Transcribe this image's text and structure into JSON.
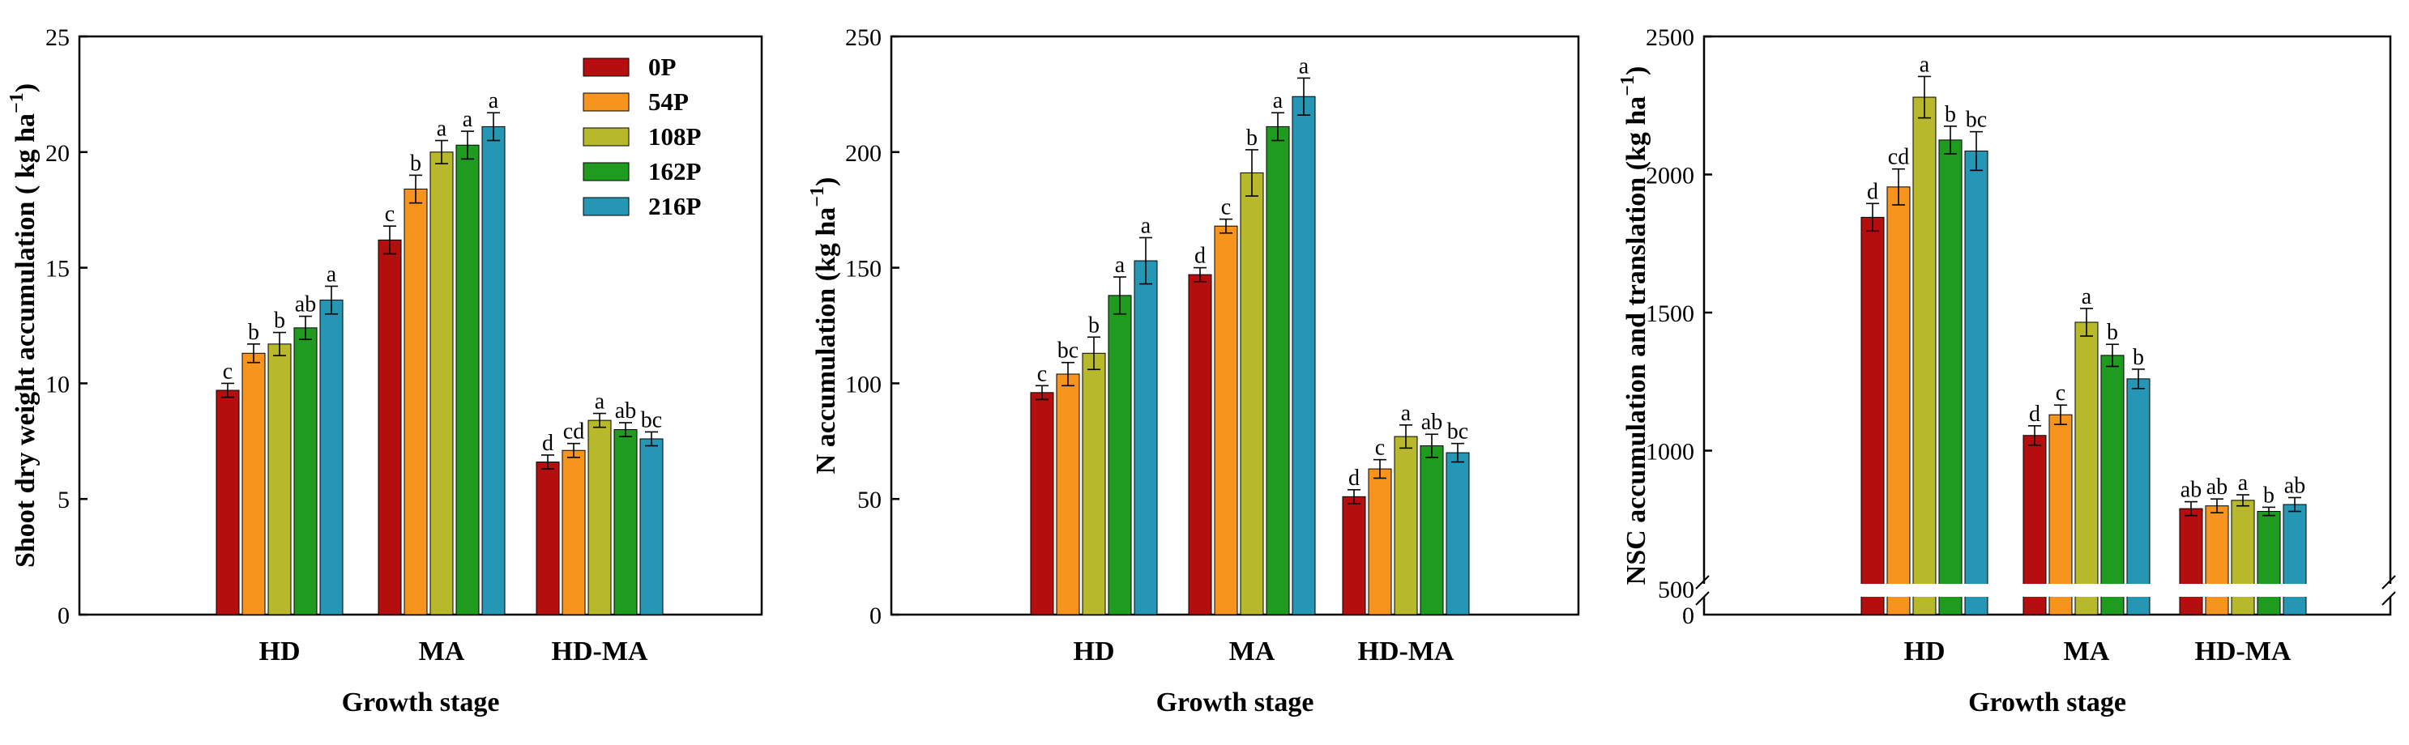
{
  "chart_data": [
    {
      "type": "bar",
      "title": "",
      "xlabel": "Growth stage",
      "ylabel": "Shoot dry weight accumulation ( kg ha",
      "ylabel_superscript": "−1",
      "ylabel_suffix": ")",
      "ylim": [
        0,
        25
      ],
      "yticks": [
        0,
        5,
        10,
        15,
        20,
        25
      ],
      "ytick_labels": [
        "0",
        "5",
        "10",
        "15",
        "20",
        "25"
      ],
      "categories": [
        "HD",
        "MA",
        "HD-MA"
      ],
      "legend": {
        "position": "top-right",
        "entries": [
          "0P",
          "54P",
          "108P",
          "162P",
          "216P"
        ]
      },
      "series": [
        {
          "name": "0P",
          "color": "#b50e0e",
          "values": [
            9.7,
            16.2,
            6.6
          ],
          "errors": [
            0.3,
            0.6,
            0.3
          ],
          "letters": [
            "c",
            "c",
            "d"
          ]
        },
        {
          "name": "54P",
          "color": "#f7941d",
          "values": [
            11.3,
            18.4,
            7.1
          ],
          "errors": [
            0.4,
            0.6,
            0.3
          ],
          "letters": [
            "b",
            "b",
            "cd"
          ]
        },
        {
          "name": "108P",
          "color": "#b7b92a",
          "values": [
            11.7,
            20.0,
            8.4
          ],
          "errors": [
            0.5,
            0.5,
            0.3
          ],
          "letters": [
            "b",
            "a",
            "a"
          ]
        },
        {
          "name": "162P",
          "color": "#1f9c1f",
          "values": [
            12.4,
            20.3,
            8.0
          ],
          "errors": [
            0.5,
            0.6,
            0.3
          ],
          "letters": [
            "ab",
            "a",
            "ab"
          ]
        },
        {
          "name": "216P",
          "color": "#2597b5",
          "values": [
            13.6,
            21.1,
            7.6
          ],
          "errors": [
            0.6,
            0.6,
            0.3
          ],
          "letters": [
            "a",
            "a",
            "bc"
          ]
        }
      ]
    },
    {
      "type": "bar",
      "title": "",
      "xlabel": "Growth stage",
      "ylabel": "N accumulation (kg ha",
      "ylabel_superscript": "−1",
      "ylabel_suffix": ")",
      "ylim": [
        0,
        250
      ],
      "yticks": [
        0,
        50,
        100,
        150,
        200,
        250
      ],
      "ytick_labels": [
        "0",
        "50",
        "100",
        "150",
        "200",
        "250"
      ],
      "categories": [
        "HD",
        "MA",
        "HD-MA"
      ],
      "series": [
        {
          "name": "0P",
          "color": "#b50e0e",
          "values": [
            96,
            147,
            51
          ],
          "errors": [
            3,
            3,
            3
          ],
          "letters": [
            "c",
            "d",
            "d"
          ]
        },
        {
          "name": "54P",
          "color": "#f7941d",
          "values": [
            104,
            168,
            63
          ],
          "errors": [
            5,
            3,
            4
          ],
          "letters": [
            "bc",
            "c",
            "c"
          ]
        },
        {
          "name": "108P",
          "color": "#b7b92a",
          "values": [
            113,
            191,
            77
          ],
          "errors": [
            7,
            10,
            5
          ],
          "letters": [
            "b",
            "b",
            "a"
          ]
        },
        {
          "name": "162P",
          "color": "#1f9c1f",
          "values": [
            138,
            211,
            73
          ],
          "errors": [
            8,
            6,
            5
          ],
          "letters": [
            "a",
            "a",
            "ab"
          ]
        },
        {
          "name": "216P",
          "color": "#2597b5",
          "values": [
            153,
            224,
            70
          ],
          "errors": [
            10,
            8,
            4
          ],
          "letters": [
            "a",
            "a",
            "bc"
          ]
        }
      ]
    },
    {
      "type": "bar",
      "title": "",
      "xlabel": "Growth stage",
      "ylabel": "NSC accumulation and translation (kg ha",
      "ylabel_superscript": "−1",
      "ylabel_suffix": ")",
      "ylim": [
        500,
        2500
      ],
      "axis_break": true,
      "yticks": [
        500,
        1000,
        1500,
        2000,
        2500
      ],
      "ytick_labels": [
        "500",
        "1000",
        "1500",
        "2000",
        "2500"
      ],
      "zero_label": "0",
      "categories": [
        "HD",
        "MA",
        "HD-MA"
      ],
      "series": [
        {
          "name": "0P",
          "color": "#b50e0e",
          "values": [
            1845,
            1055,
            790
          ],
          "errors": [
            50,
            35,
            25
          ],
          "letters": [
            "d",
            "d",
            "ab"
          ]
        },
        {
          "name": "54P",
          "color": "#f7941d",
          "values": [
            1955,
            1130,
            800
          ],
          "errors": [
            65,
            35,
            25
          ],
          "letters": [
            "cd",
            "c",
            "ab"
          ]
        },
        {
          "name": "108P",
          "color": "#b7b92a",
          "values": [
            2280,
            1465,
            820
          ],
          "errors": [
            75,
            50,
            20
          ],
          "letters": [
            "a",
            "a",
            "a"
          ]
        },
        {
          "name": "162P",
          "color": "#1f9c1f",
          "values": [
            2125,
            1345,
            780
          ],
          "errors": [
            50,
            40,
            15
          ],
          "letters": [
            "b",
            "b",
            "b"
          ]
        },
        {
          "name": "216P",
          "color": "#2597b5",
          "values": [
            2085,
            1260,
            805
          ],
          "errors": [
            70,
            35,
            25
          ],
          "letters": [
            "bc",
            "b",
            "ab"
          ]
        }
      ]
    }
  ]
}
